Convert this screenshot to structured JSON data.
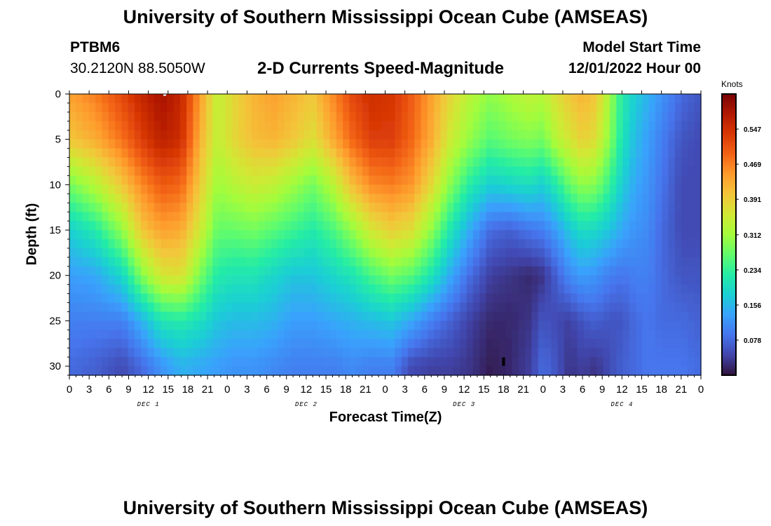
{
  "header": {
    "title": "University of Southern Mississippi Ocean Cube (AMSEAS)",
    "station_id": "PTBM6",
    "station_latlon": "30.2120N  88.5050W",
    "subtitle": "2-D Currents Speed-Magnitude",
    "model_start_label": "Model Start Time",
    "model_start_value": "12/01/2022 Hour 00"
  },
  "footer": {
    "title": "University of Southern Mississippi Ocean Cube (AMSEAS)"
  },
  "colors": {
    "palette": [
      "#30123b",
      "#4145ab",
      "#4675ed",
      "#39a2fc",
      "#1bcfd4",
      "#24eca6",
      "#61fc6c",
      "#a4fc3b",
      "#d1e834",
      "#f3c63a",
      "#fe9b2d",
      "#f36315",
      "#d93806",
      "#b11901",
      "#7a0402"
    ]
  },
  "chart_data": {
    "type": "heatmap",
    "title": "2-D Currents Speed-Magnitude",
    "xlabel": "Forecast Time(Z)",
    "ylabel": "Depth (ft)",
    "x_range_hours": [
      0,
      96
    ],
    "x_tick_labels": [
      "0",
      "3",
      "6",
      "9",
      "12",
      "15",
      "18",
      "21",
      "0",
      "3",
      "6",
      "9",
      "12",
      "15",
      "18",
      "21",
      "0",
      "3",
      "6",
      "9",
      "12",
      "15",
      "18",
      "21",
      "0",
      "3",
      "6",
      "9",
      "12",
      "15",
      "18",
      "21",
      "0"
    ],
    "day_labels": [
      "DEC 1",
      "DEC 2",
      "DEC 3",
      "DEC 4"
    ],
    "y_range_ft": [
      0,
      31
    ],
    "y_ticks": [
      "0",
      "5",
      "10",
      "15",
      "20",
      "25",
      "30"
    ],
    "colorbar": {
      "unit": "Knots",
      "range": [
        0,
        0.625
      ],
      "ticks": [
        "0.547",
        "0.469",
        "0.391",
        "0.312",
        "0.234",
        "0.156",
        "0.078"
      ]
    },
    "speed_profile_knots": {
      "hours": [
        0,
        4,
        8,
        11,
        14,
        17,
        20,
        22.5,
        25,
        28,
        31,
        34,
        37,
        40,
        43,
        46,
        49,
        52,
        55,
        58,
        61,
        64,
        67,
        70,
        72,
        74,
        76,
        78,
        80,
        82,
        84,
        86,
        88,
        90,
        93,
        96
      ],
      "depths_ft": [
        0,
        5,
        10,
        15,
        20,
        25,
        30
      ],
      "values": [
        [
          0.44,
          0.4,
          0.28,
          0.18,
          0.13,
          0.1,
          0.08
        ],
        [
          0.47,
          0.43,
          0.33,
          0.22,
          0.14,
          0.1,
          0.07
        ],
        [
          0.52,
          0.48,
          0.4,
          0.3,
          0.19,
          0.1,
          0.05
        ],
        [
          0.56,
          0.53,
          0.46,
          0.4,
          0.29,
          0.15,
          0.08
        ],
        [
          0.59,
          0.57,
          0.5,
          0.44,
          0.36,
          0.21,
          0.12
        ],
        [
          0.56,
          0.55,
          0.49,
          0.43,
          0.37,
          0.22,
          0.15
        ],
        [
          0.44,
          0.42,
          0.39,
          0.35,
          0.28,
          0.2,
          0.14
        ],
        [
          0.34,
          0.34,
          0.31,
          0.27,
          0.22,
          0.17,
          0.13
        ],
        [
          0.38,
          0.38,
          0.33,
          0.27,
          0.21,
          0.16,
          0.12
        ],
        [
          0.42,
          0.41,
          0.35,
          0.28,
          0.21,
          0.16,
          0.12
        ],
        [
          0.44,
          0.42,
          0.34,
          0.26,
          0.19,
          0.15,
          0.11
        ],
        [
          0.42,
          0.4,
          0.31,
          0.24,
          0.17,
          0.13,
          0.1
        ],
        [
          0.4,
          0.37,
          0.28,
          0.22,
          0.17,
          0.13,
          0.1
        ],
        [
          0.46,
          0.43,
          0.33,
          0.25,
          0.19,
          0.14,
          0.1
        ],
        [
          0.52,
          0.49,
          0.41,
          0.3,
          0.21,
          0.15,
          0.11
        ],
        [
          0.55,
          0.53,
          0.46,
          0.36,
          0.25,
          0.16,
          0.1
        ],
        [
          0.54,
          0.53,
          0.47,
          0.39,
          0.28,
          0.17,
          0.1
        ],
        [
          0.5,
          0.49,
          0.45,
          0.37,
          0.26,
          0.14,
          0.05
        ],
        [
          0.44,
          0.43,
          0.38,
          0.3,
          0.21,
          0.1,
          0.04
        ],
        [
          0.38,
          0.35,
          0.29,
          0.21,
          0.14,
          0.07,
          0.04
        ],
        [
          0.33,
          0.3,
          0.22,
          0.14,
          0.08,
          0.04,
          0.03
        ],
        [
          0.3,
          0.26,
          0.18,
          0.08,
          0.04,
          0.02,
          0.01
        ],
        [
          0.32,
          0.28,
          0.19,
          0.07,
          0.03,
          0.02,
          0.02
        ],
        [
          0.34,
          0.29,
          0.2,
          0.09,
          0.02,
          0.03,
          0.04
        ],
        [
          0.33,
          0.28,
          0.18,
          0.1,
          0.03,
          0.06,
          0.08
        ],
        [
          0.37,
          0.33,
          0.22,
          0.13,
          0.07,
          0.05,
          0.06
        ],
        [
          0.4,
          0.36,
          0.27,
          0.17,
          0.11,
          0.04,
          0.03
        ],
        [
          0.42,
          0.39,
          0.3,
          0.2,
          0.13,
          0.06,
          0.04
        ],
        [
          0.4,
          0.37,
          0.29,
          0.19,
          0.12,
          0.07,
          0.03
        ],
        [
          0.32,
          0.3,
          0.24,
          0.17,
          0.1,
          0.06,
          0.05
        ],
        [
          0.22,
          0.21,
          0.18,
          0.14,
          0.09,
          0.06,
          0.07
        ],
        [
          0.18,
          0.16,
          0.14,
          0.12,
          0.1,
          0.08,
          0.08
        ],
        [
          0.15,
          0.13,
          0.12,
          0.11,
          0.1,
          0.09,
          0.09
        ],
        [
          0.12,
          0.1,
          0.09,
          0.08,
          0.08,
          0.08,
          0.09
        ],
        [
          0.08,
          0.06,
          0.05,
          0.05,
          0.06,
          0.08,
          0.09
        ],
        [
          0.06,
          0.05,
          0.05,
          0.05,
          0.06,
          0.07,
          0.08
        ]
      ]
    },
    "markers": [
      {
        "hour": 14.5,
        "depth_ft": 0.2,
        "color": "#ffffff"
      },
      {
        "hour": 66,
        "depth_ft": 29.5,
        "color": "#000000"
      }
    ]
  }
}
